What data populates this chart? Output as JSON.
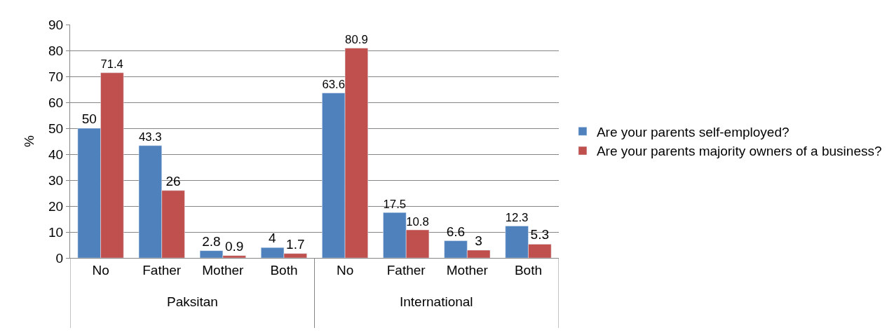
{
  "chart_data": {
    "type": "bar",
    "ylabel": "%",
    "categories": [
      "No",
      "Father",
      "Mother",
      "Both",
      "No",
      "Father",
      "Mother",
      "Both"
    ],
    "series": [
      {
        "name": "Are your parents self-employed?",
        "color": "#4f81bd",
        "values": [
          50,
          43.3,
          2.8,
          4,
          63.6,
          17.5,
          6.6,
          12.3
        ]
      },
      {
        "name": "Are your parents majority owners of a business?",
        "color": "#c0504d",
        "values": [
          71.4,
          26,
          0.9,
          1.7,
          80.9,
          10.8,
          3,
          5.3
        ]
      }
    ],
    "annotations": [
      "Paksitan",
      "International"
    ],
    "ylim": [
      0,
      90
    ],
    "yticks": [
      0,
      10,
      20,
      30,
      40,
      50,
      60,
      70,
      80,
      90
    ],
    "grid": "y",
    "legend": "right",
    "data_labels": true
  }
}
